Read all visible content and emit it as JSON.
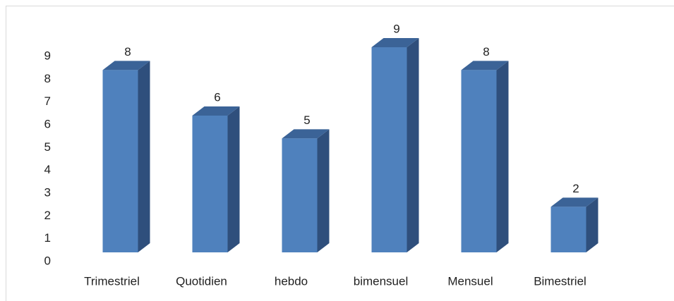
{
  "chart_data": {
    "type": "bar3d",
    "categories": [
      "Trimestriel",
      "Quotidien",
      "hebdo",
      "bimensuel",
      "Mensuel",
      "Bimestriel"
    ],
    "values": [
      8,
      6,
      5,
      9,
      8,
      2
    ],
    "color": "#4f81bd",
    "ylim": [
      0,
      9
    ],
    "yticks": [
      0,
      1,
      2,
      3,
      4,
      5,
      6,
      7,
      8,
      9
    ],
    "grid": false
  }
}
